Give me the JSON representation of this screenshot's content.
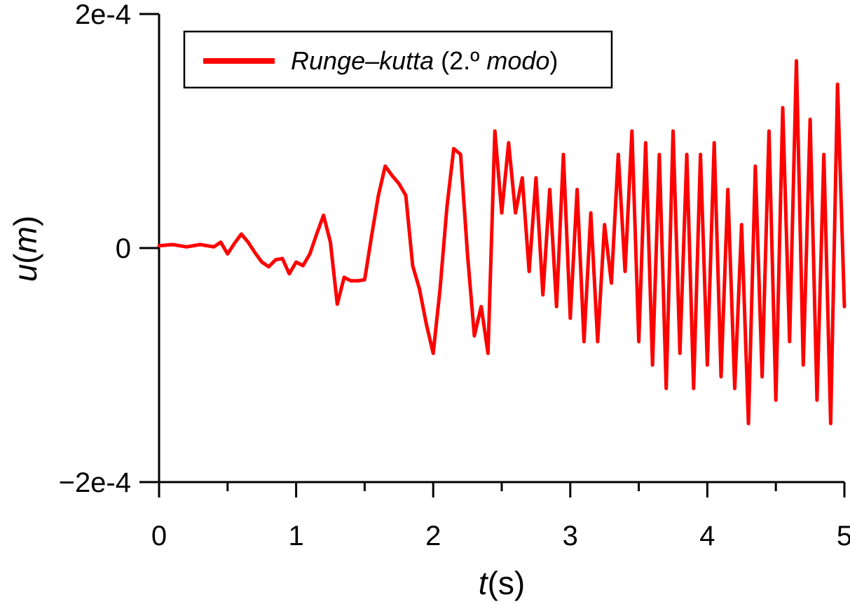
{
  "chart_data": {
    "type": "line",
    "xlabel": {
      "var": "t",
      "unit": "(s)"
    },
    "ylabel": {
      "var": "u",
      "paren_open": "(",
      "unit_var": "m",
      "paren_close": ")"
    },
    "xlim": [
      0,
      5
    ],
    "ylim": [
      -0.0002,
      0.0002
    ],
    "x_ticks": [
      {
        "value": 0,
        "label": "0"
      },
      {
        "value": 1,
        "label": "1"
      },
      {
        "value": 2,
        "label": "2"
      },
      {
        "value": 3,
        "label": "3"
      },
      {
        "value": 4,
        "label": "4"
      },
      {
        "value": 5,
        "label": "5"
      }
    ],
    "x_minor_ticks": [
      0.5,
      1.5,
      2.5,
      3.5,
      4.5
    ],
    "y_ticks": [
      {
        "value": 0.0002,
        "label": "2e-4"
      },
      {
        "value": 0,
        "label": "0"
      },
      {
        "value": -0.0002,
        "label": "−2e-4"
      }
    ],
    "grid": false,
    "legend": {
      "placement": "top-left",
      "entries": [
        {
          "name_italic": "Runge–kutta",
          "name_mid": " (2.º ",
          "name_italic2": "modo",
          "name_end": ")",
          "color": "#ff0000"
        }
      ]
    },
    "series": [
      {
        "color": "#ff0000",
        "x": [
          0,
          0.1,
          0.2,
          0.3,
          0.4,
          0.45,
          0.5,
          0.55,
          0.6,
          0.65,
          0.7,
          0.75,
          0.8,
          0.85,
          0.9,
          0.95,
          1.0,
          1.05,
          1.1,
          1.15,
          1.2,
          1.25,
          1.3,
          1.35,
          1.4,
          1.45,
          1.5,
          1.55,
          1.6,
          1.65,
          1.7,
          1.75,
          1.8,
          1.85,
          1.9,
          1.95,
          2.0,
          2.05,
          2.1,
          2.15,
          2.2,
          2.25,
          2.3,
          2.35,
          2.4,
          2.45,
          2.5,
          2.55,
          2.6,
          2.65,
          2.7,
          2.75,
          2.8,
          2.85,
          2.9,
          2.95,
          3.0,
          3.05,
          3.1,
          3.15,
          3.2,
          3.25,
          3.3,
          3.35,
          3.4,
          3.45,
          3.5,
          3.55,
          3.6,
          3.65,
          3.7,
          3.75,
          3.8,
          3.85,
          3.9,
          3.95,
          4.0,
          4.05,
          4.1,
          4.15,
          4.2,
          4.25,
          4.3,
          4.35,
          4.4,
          4.45,
          4.5,
          4.55,
          4.6,
          4.65,
          4.7,
          4.75,
          4.8,
          4.85,
          4.9,
          4.95,
          5.0
        ],
        "y": [
          2e-06,
          3e-06,
          1e-06,
          3e-06,
          1e-06,
          5e-06,
          -5e-06,
          4e-06,
          1.2e-05,
          5e-06,
          -4e-06,
          -1.2e-05,
          -1.6e-05,
          -1e-05,
          -9e-06,
          -2.2e-05,
          -1.2e-05,
          -1.5e-05,
          -5e-06,
          1.2e-05,
          2.8e-05,
          5e-06,
          -4.8e-05,
          -2.5e-05,
          -2.8e-05,
          -2.8e-05,
          -2.7e-05,
          1e-05,
          4.5e-05,
          7e-05,
          6.2e-05,
          5.5e-05,
          4.5e-05,
          -1.5e-05,
          -3.5e-05,
          -6.5e-05,
          -9e-05,
          -3.5e-05,
          3.5e-05,
          8.5e-05,
          8e-05,
          -5e-06,
          -7.5e-05,
          -5e-05,
          -9e-05,
          0.0001,
          3e-05,
          9e-05,
          3e-05,
          6e-05,
          -2e-05,
          6e-05,
          -4e-05,
          5e-05,
          -5e-05,
          8e-05,
          -6e-05,
          5e-05,
          -8e-05,
          3e-05,
          -8e-05,
          2e-05,
          -3e-05,
          8e-05,
          -2e-05,
          0.0001,
          -8e-05,
          9e-05,
          -0.0001,
          8e-05,
          -0.00012,
          0.0001,
          -9e-05,
          8e-05,
          -0.00012,
          8e-05,
          -0.0001,
          9e-05,
          -0.00011,
          5e-05,
          -0.00012,
          2e-05,
          -0.00015,
          7e-05,
          -0.00011,
          0.0001,
          -0.00013,
          0.00012,
          -8e-05,
          0.00016,
          -0.0001,
          0.00011,
          -0.00013,
          8e-05,
          -0.00015,
          0.00014,
          -5e-05
        ]
      }
    ]
  }
}
